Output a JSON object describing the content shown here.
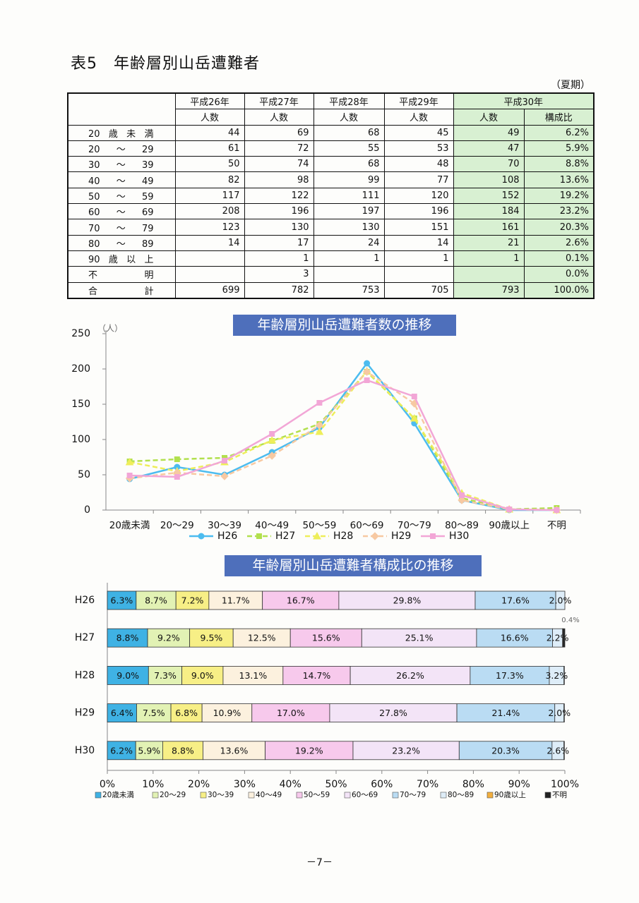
{
  "header": {
    "title": "表5　年齢層別山岳遭難者",
    "note": "（夏期）"
  },
  "table": {
    "years": [
      "平成26年",
      "平成27年",
      "平成28年",
      "平成29年",
      "平成30年"
    ],
    "subheaders": [
      "人数",
      "人数",
      "人数",
      "人数",
      "人数",
      "構成比"
    ],
    "rows": [
      [
        "20歳未満",
        44,
        69,
        68,
        45,
        49,
        "6.2%"
      ],
      [
        "20～29",
        61,
        72,
        55,
        53,
        47,
        "5.9%"
      ],
      [
        "30～39",
        50,
        74,
        68,
        48,
        70,
        "8.8%"
      ],
      [
        "40～49",
        82,
        98,
        99,
        77,
        108,
        "13.6%"
      ],
      [
        "50～59",
        117,
        122,
        111,
        120,
        152,
        "19.2%"
      ],
      [
        "60～69",
        208,
        196,
        197,
        196,
        184,
        "23.2%"
      ],
      [
        "70～79",
        123,
        130,
        130,
        151,
        161,
        "20.3%"
      ],
      [
        "80～89",
        14,
        17,
        24,
        14,
        21,
        "2.6%"
      ],
      [
        "90歳以上",
        null,
        1,
        1,
        1,
        1,
        "0.1%"
      ],
      [
        "不明",
        null,
        3,
        null,
        null,
        null,
        "0.0%"
      ],
      [
        "合計",
        699,
        782,
        753,
        705,
        793,
        "100.0%"
      ]
    ]
  },
  "chart_data": [
    {
      "type": "line",
      "title": "年齢層別山岳遭難者数の推移",
      "y_unit": "（人）",
      "categories": [
        "20歳未満",
        "20～29",
        "30～39",
        "40～49",
        "50～59",
        "60～69",
        "70～79",
        "80～89",
        "90歳以上",
        "不明"
      ],
      "series": [
        {
          "name": "H26",
          "color": "#4cbcef",
          "marker": "circle",
          "dash": false,
          "values": [
            44,
            61,
            50,
            82,
            117,
            208,
            123,
            14,
            0,
            0
          ]
        },
        {
          "name": "H27",
          "color": "#b2e04e",
          "marker": "square",
          "dash": true,
          "values": [
            69,
            72,
            74,
            98,
            122,
            196,
            130,
            17,
            1,
            3
          ]
        },
        {
          "name": "H28",
          "color": "#eeee5a",
          "marker": "triangle",
          "dash": true,
          "values": [
            68,
            55,
            68,
            99,
            111,
            197,
            130,
            24,
            1,
            0
          ]
        },
        {
          "name": "H29",
          "color": "#f7c9a2",
          "marker": "diamond",
          "dash": true,
          "values": [
            45,
            53,
            48,
            77,
            120,
            196,
            151,
            14,
            1,
            0
          ]
        },
        {
          "name": "H30",
          "color": "#f2a6d6",
          "marker": "square",
          "dash": false,
          "values": [
            49,
            47,
            70,
            108,
            152,
            184,
            161,
            21,
            1,
            0
          ]
        }
      ],
      "ylim": [
        0,
        250
      ],
      "yticks": [
        0,
        50,
        100,
        150,
        200,
        250
      ],
      "legend": "bottom"
    },
    {
      "type": "bar",
      "orientation": "horizontal",
      "stacked": true,
      "title": "年齢層別山岳遭難者構成比の推移",
      "categories": [
        "H26",
        "H27",
        "H28",
        "H29",
        "H30"
      ],
      "series": [
        {
          "name": "20歳未満",
          "color": "#3fb2e4",
          "values": [
            6.3,
            8.8,
            9.0,
            6.4,
            6.2
          ],
          "value_labels": [
            "6.3%",
            "8.8%",
            "9.0%",
            "6.4%",
            "6.2%"
          ]
        },
        {
          "name": "20～29",
          "color": "#e2f2b4",
          "values": [
            8.7,
            9.2,
            7.3,
            7.5,
            5.9
          ],
          "value_labels": [
            "8.7%",
            "9.2%",
            "7.3%",
            "7.5%",
            "5.9%"
          ]
        },
        {
          "name": "30～39",
          "color": "#f7ef86",
          "values": [
            7.2,
            9.5,
            9.0,
            6.8,
            8.8
          ],
          "value_labels": [
            "7.2%",
            "9.5%",
            "9.0%",
            "6.8%",
            "8.8%"
          ]
        },
        {
          "name": "40～49",
          "color": "#fcf1de",
          "values": [
            11.7,
            12.5,
            13.1,
            10.9,
            13.6
          ],
          "value_labels": [
            "11.7%",
            "12.5%",
            "13.1%",
            "10.9%",
            "13.6%"
          ]
        },
        {
          "name": "50～59",
          "color": "#f7c9ec",
          "values": [
            16.7,
            15.6,
            14.7,
            17.0,
            19.2
          ],
          "value_labels": [
            "16.7%",
            "15.6%",
            "14.7%",
            "17.0%",
            "19.2%"
          ]
        },
        {
          "name": "60～69",
          "color": "#f3e4f7",
          "values": [
            29.8,
            25.1,
            26.2,
            27.8,
            23.2
          ],
          "value_labels": [
            "29.8%",
            "25.1%",
            "26.2%",
            "27.8%",
            "23.2%"
          ]
        },
        {
          "name": "70～79",
          "color": "#badcf3",
          "values": [
            17.6,
            16.6,
            17.3,
            21.4,
            20.3
          ],
          "value_labels": [
            "17.6%",
            "16.6%",
            "17.3%",
            "21.4%",
            "20.3%"
          ]
        },
        {
          "name": "80～89",
          "color": "#deedf8",
          "values": [
            2.0,
            2.2,
            3.2,
            2.0,
            2.6
          ],
          "value_labels": [
            "2.0%",
            "2.2%",
            "3.2%",
            "2.0%",
            "2.6%"
          ]
        },
        {
          "name": "90歳以上",
          "color": "#f2ae3e",
          "values": [
            0,
            0.1,
            0.1,
            0.1,
            0.1
          ],
          "value_labels": [
            null,
            null,
            null,
            null,
            null
          ]
        },
        {
          "name": "不明",
          "color": "#222222",
          "values": [
            0,
            0.4,
            0,
            0,
            0
          ],
          "value_labels": [
            null,
            "0.4%",
            null,
            null,
            null
          ]
        }
      ],
      "xlim": [
        0,
        100
      ],
      "xticks": [
        {
          "value": 0,
          "label": "0%"
        },
        {
          "value": 10,
          "label": "10%"
        },
        {
          "value": 20,
          "label": "20%"
        },
        {
          "value": 30,
          "label": "30%"
        },
        {
          "value": 40,
          "label": "40%"
        },
        {
          "value": 50,
          "label": "50%"
        },
        {
          "value": 60,
          "label": "60%"
        },
        {
          "value": 70,
          "label": "70%"
        },
        {
          "value": 80,
          "label": "80%"
        },
        {
          "value": 90,
          "label": "90%"
        },
        {
          "value": 100,
          "label": "100%"
        }
      ],
      "legend": "bottom"
    }
  ],
  "footer": {
    "page": "－7－"
  }
}
